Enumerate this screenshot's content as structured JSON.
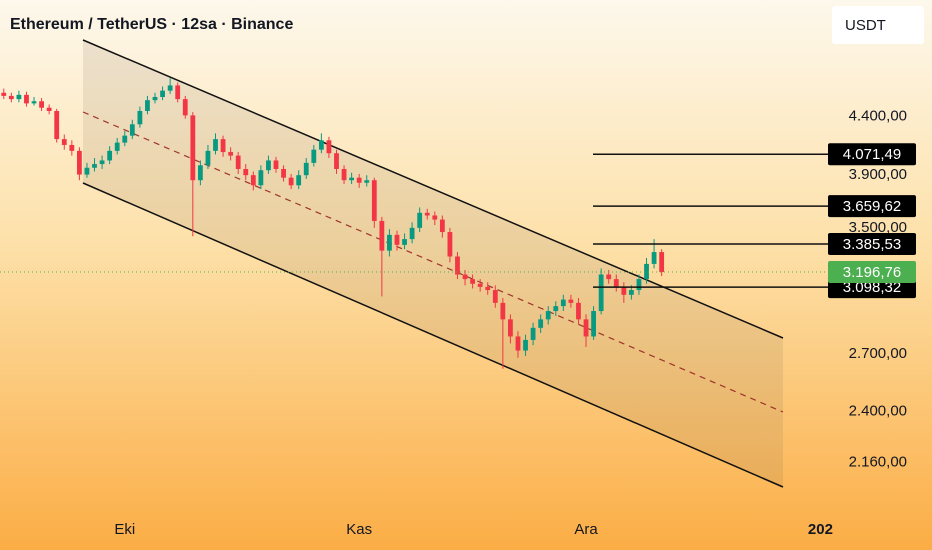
{
  "chart_data": {
    "type": "candlestick",
    "title": "Ethereum / TetherUS · 12sa · Binance",
    "currency": "USDT",
    "log_scale": true,
    "up_color": "#089981",
    "down_color": "#f23645",
    "x": [
      -16,
      -15,
      -14,
      -13,
      -12,
      -11,
      -10,
      -9,
      -8,
      -7,
      -6,
      -5,
      -4,
      -3,
      -2,
      -1,
      0,
      1,
      2,
      3,
      4,
      5,
      6,
      7,
      8,
      9,
      10,
      11,
      12,
      13,
      14,
      15,
      16,
      17,
      18,
      19,
      20,
      21,
      22,
      23,
      24,
      25,
      26,
      27,
      28,
      29,
      30,
      31,
      32,
      33,
      34,
      35,
      36,
      37,
      38,
      39,
      40,
      41,
      42,
      43,
      44,
      45,
      46,
      47,
      48,
      49,
      50,
      51,
      52,
      53,
      54,
      55,
      56,
      57,
      58,
      59,
      60,
      61,
      62,
      63,
      64,
      65,
      66,
      67,
      68,
      69,
      70,
      71
    ],
    "open": [
      4620,
      4590,
      4560,
      4600,
      4520,
      4540,
      4480,
      4450,
      4200,
      4150,
      4100,
      3905,
      3960,
      3990,
      4020,
      4100,
      4170,
      4230,
      4330,
      4450,
      4550,
      4580,
      4640,
      4690,
      4560,
      4410,
      3860,
      3980,
      4100,
      4200,
      4090,
      4060,
      3950,
      3900,
      3820,
      3940,
      4020,
      3950,
      3880,
      3820,
      3900,
      4000,
      4110,
      4190,
      4080,
      3950,
      3860,
      3880,
      3840,
      3860,
      3550,
      3340,
      3450,
      3380,
      3420,
      3500,
      3610,
      3590,
      3560,
      3470,
      3300,
      3180,
      3150,
      3120,
      3100,
      3080,
      3000,
      2900,
      2800,
      2720,
      2780,
      2850,
      2900,
      2950,
      2980,
      3020,
      3000,
      2900,
      2800,
      2950,
      3180,
      3150,
      3100,
      3050,
      3080,
      3150,
      3250,
      3330
    ],
    "high": [
      4660,
      4620,
      4640,
      4630,
      4580,
      4570,
      4510,
      4470,
      4240,
      4190,
      4130,
      4000,
      4040,
      4060,
      4140,
      4210,
      4270,
      4370,
      4490,
      4590,
      4620,
      4680,
      4760,
      4720,
      4590,
      4440,
      4020,
      4150,
      4250,
      4230,
      4130,
      4090,
      3990,
      3930,
      3980,
      4060,
      4050,
      3980,
      3910,
      3940,
      4040,
      4150,
      4250,
      4220,
      4110,
      3980,
      3920,
      3910,
      3900,
      3880,
      3580,
      3490,
      3480,
      3460,
      3540,
      3650,
      3640,
      3620,
      3590,
      3500,
      3330,
      3210,
      3180,
      3150,
      3130,
      3110,
      3030,
      2930,
      2830,
      2810,
      2880,
      2930,
      2980,
      3010,
      3050,
      3050,
      3030,
      2930,
      2980,
      3220,
      3210,
      3180,
      3130,
      3110,
      3180,
      3290,
      3420,
      3350
    ],
    "low": [
      4560,
      4530,
      4530,
      4490,
      4500,
      4450,
      4420,
      4170,
      4110,
      4060,
      3860,
      3880,
      3930,
      3950,
      3990,
      4070,
      4140,
      4200,
      4300,
      4420,
      4520,
      4550,
      4610,
      4530,
      4380,
      3440,
      3820,
      3950,
      4070,
      4050,
      4020,
      3910,
      3860,
      3780,
      3790,
      3910,
      3920,
      3850,
      3790,
      3790,
      3870,
      3970,
      4080,
      4040,
      3910,
      3830,
      3830,
      3800,
      3810,
      3500,
      3040,
      3300,
      3340,
      3350,
      3390,
      3470,
      3560,
      3520,
      3430,
      3260,
      3150,
      3110,
      3090,
      3070,
      3050,
      2970,
      2620,
      2760,
      2680,
      2690,
      2750,
      2820,
      2870,
      2920,
      2950,
      2970,
      2870,
      2740,
      2780,
      2930,
      3120,
      3070,
      3000,
      3020,
      3050,
      3120,
      3220,
      3170
    ],
    "close": [
      4590,
      4560,
      4600,
      4520,
      4540,
      4480,
      4450,
      4200,
      4150,
      4100,
      3905,
      3960,
      3990,
      4020,
      4100,
      4170,
      4230,
      4330,
      4450,
      4550,
      4580,
      4640,
      4690,
      4560,
      4410,
      3860,
      3980,
      4100,
      4200,
      4090,
      4060,
      3950,
      3900,
      3820,
      3940,
      4020,
      3950,
      3880,
      3820,
      3900,
      4000,
      4110,
      4190,
      4080,
      3950,
      3860,
      3880,
      3840,
      3860,
      3550,
      3340,
      3450,
      3380,
      3420,
      3500,
      3610,
      3590,
      3560,
      3470,
      3300,
      3180,
      3150,
      3120,
      3100,
      3080,
      3000,
      2900,
      2800,
      2720,
      2780,
      2850,
      2900,
      2950,
      2980,
      3020,
      3000,
      2900,
      2800,
      2950,
      3180,
      3150,
      3100,
      3050,
      3080,
      3150,
      3250,
      3330,
      3196
    ],
    "xlim": [
      -16.5,
      93
    ],
    "xticks": [
      {
        "value": 0,
        "label": "Eki"
      },
      {
        "value": 31,
        "label": "Kas"
      },
      {
        "value": 61,
        "label": "Ara"
      },
      {
        "value": 92,
        "label": "202"
      }
    ],
    "ylim": [
      1940,
      5590
    ],
    "yticks": [
      {
        "value": 4400,
        "label": "4.400,00"
      },
      {
        "value": 3900,
        "label": "3.900,00"
      },
      {
        "value": 3500,
        "label": "3.500,00"
      },
      {
        "value": 2700,
        "label": "2.700,00"
      },
      {
        "value": 2400,
        "label": "2.400,00"
      },
      {
        "value": 2160,
        "label": "2.160,00"
      }
    ],
    "levels": [
      {
        "value": 4071.49,
        "label": "4.071,49"
      },
      {
        "value": 3659.62,
        "label": "3.659,62"
      },
      {
        "value": 3385.53,
        "label": "3.385,53"
      },
      {
        "value": 3098.32,
        "label": "3.098,32"
      }
    ],
    "current_price": {
      "value": 3196.76,
      "label": "3.196,76",
      "color": "#4caf50"
    }
  }
}
